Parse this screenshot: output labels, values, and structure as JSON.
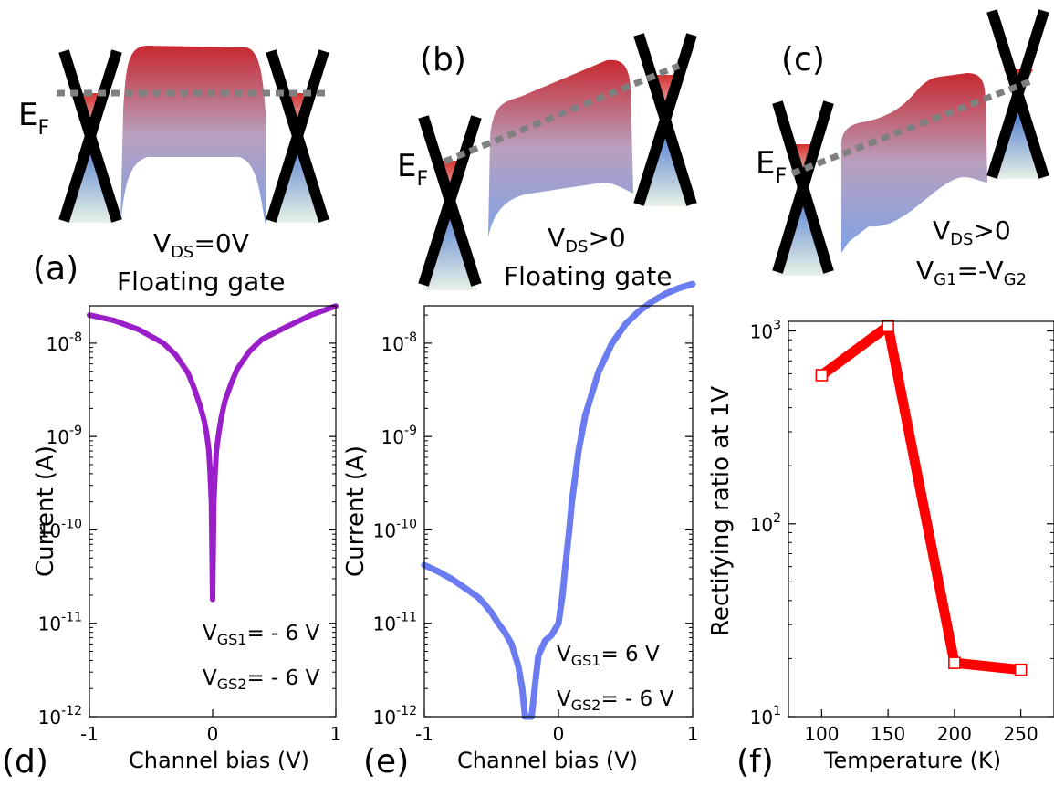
{
  "panels": {
    "a": {
      "tag": "(a)",
      "fermi": {
        "main": "E",
        "sub": "F"
      },
      "line1": {
        "pre": "V",
        "sub": "DS",
        "post": "=0V"
      },
      "line2": "Floating gate"
    },
    "b": {
      "tag": "(b)",
      "fermi": {
        "main": "E",
        "sub": "F"
      },
      "line1": {
        "pre": "V",
        "sub": "DS",
        "post": ">0"
      },
      "line2": "Floating gate"
    },
    "c": {
      "tag": "(c)",
      "fermi": {
        "main": "E",
        "sub": "F"
      },
      "line1": {
        "pre": "V",
        "sub": "DS",
        "post": ">0"
      },
      "line2": {
        "pre": "V",
        "sub1": "G1",
        "mid": "=-V",
        "sub2": "G2"
      }
    }
  },
  "chart_data": [
    {
      "id": "d",
      "tag": "(d)",
      "type": "line",
      "xlabel": "Channel bias (V)",
      "ylabel": "Current (A)",
      "xlim": [
        -1,
        1
      ],
      "ylim_log10": [
        -12,
        -7.6
      ],
      "yscale": "log",
      "xticks": [
        {
          "v": -1,
          "label": "-1"
        },
        {
          "v": 0,
          "label": "0"
        },
        {
          "v": 1,
          "label": "1"
        }
      ],
      "yticks": [
        {
          "exp": -12,
          "base": "10",
          "sup": "-12"
        },
        {
          "exp": -11,
          "base": "10",
          "sup": "-11"
        },
        {
          "exp": -10,
          "base": "10",
          "sup": "-10"
        },
        {
          "exp": -9,
          "base": "10",
          "sup": "-9"
        },
        {
          "exp": -8,
          "base": "10",
          "sup": "-8"
        }
      ],
      "color": "#9a1fc8",
      "series": [
        {
          "x": [
            -1.0,
            -0.8,
            -0.6,
            -0.4,
            -0.3,
            -0.2,
            -0.15,
            -0.1,
            -0.07,
            -0.05,
            -0.03,
            -0.02,
            -0.01,
            0.0,
            0.01,
            0.02,
            0.03,
            0.05,
            0.07,
            0.1,
            0.15,
            0.2,
            0.3,
            0.4,
            0.6,
            0.8,
            1.0
          ],
          "y": [
            2e-08,
            1.75e-08,
            1.4e-08,
            1e-08,
            7.5e-09,
            4.8e-09,
            3.3e-09,
            2.1e-09,
            1.5e-09,
            1.1e-09,
            7e-10,
            4e-10,
            2e-10,
            1.8e-11,
            2e-10,
            4e-10,
            7e-10,
            1.1e-09,
            1.6e-09,
            2.4e-09,
            3.7e-09,
            5.3e-09,
            8.2e-09,
            1.1e-08,
            1.5e-08,
            2e-08,
            2.5e-08
          ]
        }
      ],
      "annotations": [
        {
          "pre": "V",
          "sub": "GS1",
          "post": "= - 6 V"
        },
        {
          "pre": "V",
          "sub": "GS2",
          "post": "= - 6 V"
        }
      ]
    },
    {
      "id": "e",
      "tag": "(e)",
      "type": "line",
      "xlabel": "Channel bias (V)",
      "ylabel": "Current (A)",
      "xlim": [
        -1,
        1
      ],
      "ylim_log10": [
        -12,
        -7.6
      ],
      "yscale": "log",
      "xticks": [
        {
          "v": -1,
          "label": "-1"
        },
        {
          "v": 0,
          "label": "0"
        },
        {
          "v": 1,
          "label": "1"
        }
      ],
      "yticks": [
        {
          "exp": -12,
          "base": "10",
          "sup": "-12"
        },
        {
          "exp": -11,
          "base": "10",
          "sup": "-11"
        },
        {
          "exp": -10,
          "base": "10",
          "sup": "-10"
        },
        {
          "exp": -9,
          "base": "10",
          "sup": "-9"
        },
        {
          "exp": -8,
          "base": "10",
          "sup": "-8"
        }
      ],
      "color": "#6a7cf0",
      "series": [
        {
          "x": [
            -1.0,
            -0.9,
            -0.8,
            -0.7,
            -0.6,
            -0.55,
            -0.5,
            -0.45,
            -0.4,
            -0.35,
            -0.3,
            -0.27,
            -0.25,
            -0.23,
            -0.2,
            -0.17,
            -0.15,
            -0.1,
            -0.05,
            0.0,
            0.03,
            0.05,
            0.08,
            0.1,
            0.15,
            0.2,
            0.3,
            0.4,
            0.5,
            0.6,
            0.7,
            0.8,
            0.9,
            1.0
          ],
          "y": [
            4.2e-11,
            3.6e-11,
            3e-11,
            2.4e-11,
            1.9e-11,
            1.6e-11,
            1.3e-11,
            1e-11,
            8e-12,
            6e-12,
            3.5e-12,
            2e-12,
            1e-12,
            1e-12,
            1e-12,
            2.5e-12,
            4.5e-12,
            6.5e-12,
            7.5e-12,
            1e-11,
            2e-11,
            4e-11,
            1e-10,
            2e-10,
            7e-10,
            1.7e-09,
            5e-09,
            1e-08,
            1.6e-08,
            2.2e-08,
            2.8e-08,
            3.4e-08,
            3.9e-08,
            4.3e-08
          ]
        }
      ],
      "annotations": [
        {
          "pre": "V",
          "sub": "GS1",
          "post": "= 6 V"
        },
        {
          "pre": "V",
          "sub": "GS2",
          "post": "= - 6 V"
        }
      ]
    },
    {
      "id": "f",
      "tag": "(f)",
      "type": "line",
      "xlabel": "Temperature (K)",
      "ylabel": "Rectifying ratio at 1V",
      "xlim": [
        75,
        275
      ],
      "ylim_log10": [
        1,
        3.05
      ],
      "yscale": "log",
      "xticks": [
        {
          "v": 100,
          "label": "100"
        },
        {
          "v": 150,
          "label": "150"
        },
        {
          "v": 200,
          "label": "200"
        },
        {
          "v": 250,
          "label": "250"
        }
      ],
      "yticks": [
        {
          "exp": 1,
          "base": "10",
          "sup": "1"
        },
        {
          "exp": 2,
          "base": "10",
          "sup": "2"
        },
        {
          "exp": 3,
          "base": "10",
          "sup": "3"
        }
      ],
      "color": "#ff0000",
      "series": [
        {
          "x": [
            100,
            150,
            200,
            250
          ],
          "y": [
            590,
            1060,
            19,
            17.5
          ]
        }
      ],
      "annotations": []
    }
  ]
}
